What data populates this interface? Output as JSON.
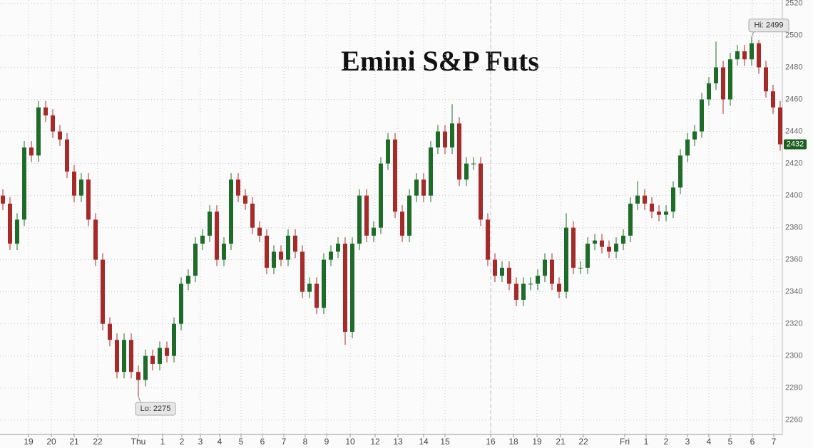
{
  "chart_data": {
    "type": "candlestick",
    "title": "Emini S&P Futs",
    "ohlc": [
      [
        2400,
        2404,
        2391,
        2395
      ],
      [
        2395,
        2399,
        2366,
        2370
      ],
      [
        2370,
        2389,
        2366,
        2385
      ],
      [
        2385,
        2434,
        2381,
        2430
      ],
      [
        2430,
        2434,
        2421,
        2425
      ],
      [
        2425,
        2459,
        2421,
        2455
      ],
      [
        2455,
        2459,
        2446,
        2450
      ],
      [
        2450,
        2454,
        2436,
        2440
      ],
      [
        2440,
        2444,
        2431,
        2435
      ],
      [
        2435,
        2439,
        2411,
        2415
      ],
      [
        2415,
        2419,
        2396,
        2400
      ],
      [
        2400,
        2414,
        2396,
        2410
      ],
      [
        2410,
        2414,
        2381,
        2385
      ],
      [
        2385,
        2389,
        2356,
        2360
      ],
      [
        2360,
        2364,
        2316,
        2320
      ],
      [
        2320,
        2324,
        2306,
        2310
      ],
      [
        2310,
        2314,
        2286,
        2290
      ],
      [
        2290,
        2314,
        2286,
        2310
      ],
      [
        2310,
        2314,
        2286,
        2290
      ],
      [
        2290,
        2294,
        2275,
        2285
      ],
      [
        2285,
        2304,
        2281,
        2300
      ],
      [
        2300,
        2304,
        2291,
        2295
      ],
      [
        2295,
        2309,
        2291,
        2305
      ],
      [
        2305,
        2309,
        2296,
        2300
      ],
      [
        2300,
        2324,
        2296,
        2320
      ],
      [
        2320,
        2349,
        2316,
        2345
      ],
      [
        2345,
        2354,
        2341,
        2350
      ],
      [
        2350,
        2374,
        2346,
        2370
      ],
      [
        2370,
        2379,
        2366,
        2375
      ],
      [
        2375,
        2394,
        2371,
        2390
      ],
      [
        2390,
        2394,
        2356,
        2360
      ],
      [
        2360,
        2374,
        2356,
        2370
      ],
      [
        2370,
        2414,
        2366,
        2410
      ],
      [
        2410,
        2414,
        2396,
        2400
      ],
      [
        2400,
        2404,
        2391,
        2395
      ],
      [
        2395,
        2399,
        2376,
        2380
      ],
      [
        2380,
        2384,
        2371,
        2375
      ],
      [
        2375,
        2379,
        2351,
        2355
      ],
      [
        2355,
        2369,
        2351,
        2365
      ],
      [
        2365,
        2369,
        2356,
        2360
      ],
      [
        2360,
        2379,
        2356,
        2375
      ],
      [
        2375,
        2379,
        2361,
        2365
      ],
      [
        2365,
        2369,
        2336,
        2340
      ],
      [
        2340,
        2349,
        2336,
        2345
      ],
      [
        2345,
        2349,
        2326,
        2330
      ],
      [
        2330,
        2364,
        2326,
        2360
      ],
      [
        2360,
        2369,
        2356,
        2365
      ],
      [
        2365,
        2374,
        2361,
        2370
      ],
      [
        2370,
        2374,
        2307,
        2315
      ],
      [
        2315,
        2374,
        2311,
        2370
      ],
      [
        2370,
        2404,
        2366,
        2400
      ],
      [
        2400,
        2404,
        2371,
        2375
      ],
      [
        2375,
        2384,
        2371,
        2380
      ],
      [
        2380,
        2424,
        2376,
        2420
      ],
      [
        2420,
        2439,
        2416,
        2435
      ],
      [
        2435,
        2439,
        2386,
        2390
      ],
      [
        2390,
        2394,
        2371,
        2375
      ],
      [
        2375,
        2404,
        2371,
        2400
      ],
      [
        2400,
        2414,
        2396,
        2410
      ],
      [
        2410,
        2414,
        2396,
        2400
      ],
      [
        2400,
        2434,
        2396,
        2430
      ],
      [
        2430,
        2444,
        2426,
        2440
      ],
      [
        2440,
        2444,
        2426,
        2430
      ],
      [
        2430,
        2457,
        2426,
        2445
      ],
      [
        2445,
        2449,
        2406,
        2410
      ],
      [
        2410,
        2424,
        2406,
        2420
      ],
      [
        2420,
        2424,
        2416,
        2420
      ],
      [
        2420,
        2424,
        2381,
        2385
      ],
      [
        2385,
        2389,
        2356,
        2360
      ],
      [
        2360,
        2364,
        2346,
        2350
      ],
      [
        2350,
        2359,
        2346,
        2355
      ],
      [
        2355,
        2359,
        2341,
        2345
      ],
      [
        2345,
        2349,
        2331,
        2335
      ],
      [
        2335,
        2349,
        2331,
        2345
      ],
      [
        2345,
        2349,
        2341,
        2345
      ],
      [
        2345,
        2354,
        2341,
        2350
      ],
      [
        2350,
        2364,
        2346,
        2360
      ],
      [
        2360,
        2364,
        2341,
        2345
      ],
      [
        2345,
        2349,
        2336,
        2340
      ],
      [
        2340,
        2389,
        2336,
        2380
      ],
      [
        2380,
        2384,
        2351,
        2355
      ],
      [
        2355,
        2359,
        2351,
        2355
      ],
      [
        2355,
        2374,
        2351,
        2370
      ],
      [
        2370,
        2376,
        2366,
        2372
      ],
      [
        2372,
        2376,
        2364,
        2368
      ],
      [
        2368,
        2372,
        2361,
        2365
      ],
      [
        2365,
        2374,
        2361,
        2370
      ],
      [
        2370,
        2379,
        2366,
        2375
      ],
      [
        2375,
        2399,
        2371,
        2395
      ],
      [
        2395,
        2409,
        2391,
        2400
      ],
      [
        2400,
        2404,
        2391,
        2395
      ],
      [
        2395,
        2399,
        2386,
        2390
      ],
      [
        2390,
        2394,
        2384,
        2388
      ],
      [
        2388,
        2394,
        2384,
        2390
      ],
      [
        2390,
        2409,
        2386,
        2405
      ],
      [
        2405,
        2429,
        2401,
        2425
      ],
      [
        2425,
        2439,
        2421,
        2435
      ],
      [
        2435,
        2444,
        2431,
        2440
      ],
      [
        2440,
        2464,
        2436,
        2460
      ],
      [
        2460,
        2474,
        2456,
        2470
      ],
      [
        2470,
        2496,
        2466,
        2480
      ],
      [
        2480,
        2484,
        2451,
        2460
      ],
      [
        2460,
        2489,
        2456,
        2485
      ],
      [
        2485,
        2494,
        2481,
        2490
      ],
      [
        2490,
        2494,
        2481,
        2485
      ],
      [
        2485,
        2499,
        2481,
        2495
      ],
      [
        2495,
        2497,
        2476,
        2480
      ],
      [
        2480,
        2484,
        2461,
        2465
      ],
      [
        2465,
        2469,
        2451,
        2455
      ],
      [
        2455,
        2459,
        2428,
        2432
      ]
    ],
    "up_color": "#1f6b2a",
    "down_color": "#a52a2a",
    "ylim": [
      2251,
      2522
    ],
    "yticks": [
      2260,
      2280,
      2300,
      2320,
      2340,
      2360,
      2380,
      2400,
      2420,
      2440,
      2460,
      2480,
      2500,
      2520
    ],
    "xlim": [
      -0.4,
      109.3
    ],
    "xticks": [
      {
        "value": 3.6,
        "label": "19"
      },
      {
        "value": 6.8,
        "label": "20"
      },
      {
        "value": 10.0,
        "label": "21"
      },
      {
        "value": 13.3,
        "label": "22"
      },
      {
        "value": 19.0,
        "label": "Thu"
      },
      {
        "value": 22.4,
        "label": "1"
      },
      {
        "value": 25.1,
        "label": "2"
      },
      {
        "value": 27.7,
        "label": "3"
      },
      {
        "value": 30.4,
        "label": "4"
      },
      {
        "value": 33.4,
        "label": "5"
      },
      {
        "value": 36.4,
        "label": "6"
      },
      {
        "value": 39.4,
        "label": "7"
      },
      {
        "value": 42.4,
        "label": "8"
      },
      {
        "value": 45.4,
        "label": "9"
      },
      {
        "value": 48.7,
        "label": "10"
      },
      {
        "value": 52.2,
        "label": "12"
      },
      {
        "value": 55.4,
        "label": "13"
      },
      {
        "value": 59.0,
        "label": "14"
      },
      {
        "value": 62.0,
        "label": "15"
      },
      {
        "value": 68.4,
        "label": "16"
      },
      {
        "value": 71.6,
        "label": "18"
      },
      {
        "value": 74.9,
        "label": "19"
      },
      {
        "value": 78.2,
        "label": "21"
      },
      {
        "value": 81.4,
        "label": "22"
      },
      {
        "value": 87.2,
        "label": "Fri"
      },
      {
        "value": 90.2,
        "label": "1"
      },
      {
        "value": 93.0,
        "label": "2"
      },
      {
        "value": 96.0,
        "label": "3"
      },
      {
        "value": 99.0,
        "label": "4"
      },
      {
        "value": 102.0,
        "label": "5"
      },
      {
        "value": 105.1,
        "label": "6"
      },
      {
        "value": 108.1,
        "label": "7"
      }
    ],
    "session_break": 68.4,
    "grid": true,
    "hi": {
      "label": "Hi: 2499",
      "value": 2499
    },
    "lo": {
      "label": "Lo: 2275",
      "value": 2275
    },
    "last_price": 2432,
    "last_color": "#1b5e20"
  }
}
